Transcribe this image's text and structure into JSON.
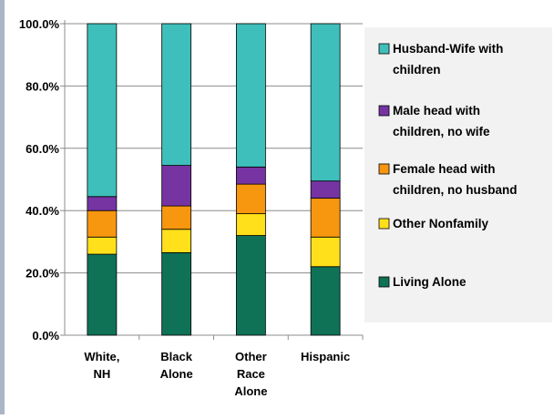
{
  "chart_data": {
    "type": "bar",
    "stacked": true,
    "percent": true,
    "categories": [
      [
        "White,",
        "NH"
      ],
      [
        "Black",
        "Alone"
      ],
      [
        "Other",
        "Race",
        "Alone"
      ],
      [
        "Hispanic"
      ]
    ],
    "ylim": [
      0,
      100
    ],
    "yticks": [
      "0.0%",
      "20.0%",
      "40.0%",
      "60.0%",
      "80.0%",
      "100.0%"
    ],
    "grid": true,
    "legend_position": "right",
    "series": [
      {
        "name": "Living Alone",
        "color": "#0f7257",
        "values": [
          26.0,
          26.5,
          32.0,
          22.0
        ]
      },
      {
        "name": "Other Nonfamily",
        "color": "#ffe01a",
        "values": [
          5.5,
          7.5,
          7.0,
          9.5
        ]
      },
      {
        "name": "Female head with children, no husband",
        "color": "#f7960f",
        "values": [
          8.5,
          7.5,
          9.5,
          12.5
        ]
      },
      {
        "name": "Male head with children, no wife",
        "color": "#7634a3",
        "values": [
          4.5,
          13.0,
          5.5,
          5.5
        ]
      },
      {
        "name": "Husband-Wife with children",
        "color": "#3fbfbb",
        "values": [
          55.5,
          45.5,
          46.0,
          50.5
        ]
      }
    ],
    "legend": [
      {
        "lines": [
          "Husband-Wife with",
          "children"
        ],
        "color": "#3fbfbb"
      },
      {
        "lines": [
          "Male head with",
          "children, no wife"
        ],
        "color": "#7634a3"
      },
      {
        "lines": [
          "Female head with",
          "children, no husband"
        ],
        "color": "#f7960f"
      },
      {
        "lines": [
          "Other Nonfamily"
        ],
        "color": "#ffe01a"
      },
      {
        "lines": [
          "Living Alone"
        ],
        "color": "#0f7257"
      }
    ]
  }
}
